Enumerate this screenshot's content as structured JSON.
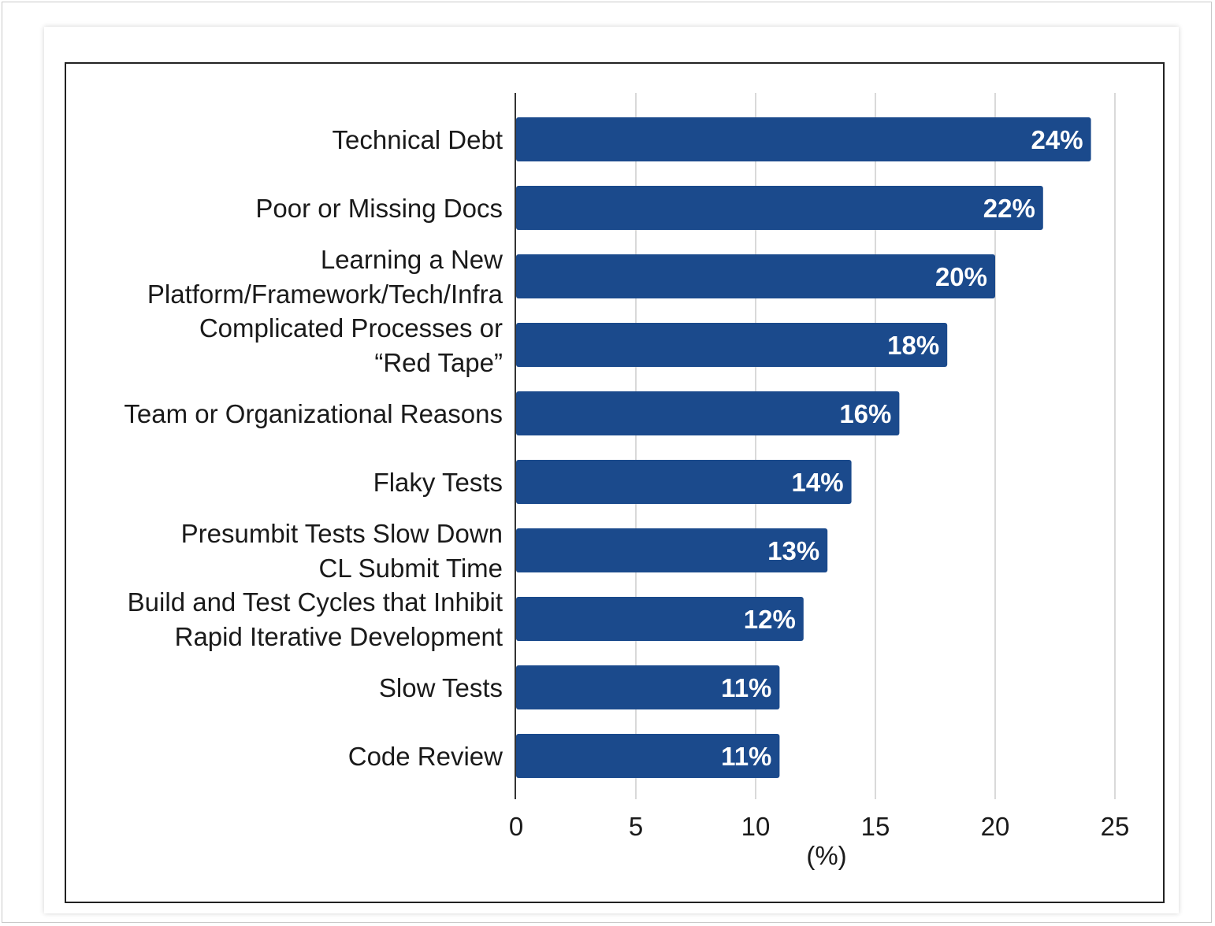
{
  "chart_data": {
    "type": "bar",
    "orientation": "horizontal",
    "categories": [
      [
        "Technical Debt"
      ],
      [
        "Poor or Missing Docs"
      ],
      [
        "Learning a New",
        "Platform/Framework/Tech/Infra"
      ],
      [
        "Complicated Processes or",
        "“Red Tape”"
      ],
      [
        "Team or Organizational Reasons"
      ],
      [
        "Flaky Tests"
      ],
      [
        "Presumbit Tests Slow Down",
        "CL Submit Time"
      ],
      [
        "Build and Test Cycles that Inhibit",
        "Rapid Iterative Development"
      ],
      [
        "Slow Tests"
      ],
      [
        "Code Review"
      ]
    ],
    "values": [
      24,
      22,
      20,
      18,
      16,
      14,
      13,
      12,
      11,
      11
    ],
    "value_labels": [
      "24%",
      "22%",
      "20%",
      "18%",
      "16%",
      "14%",
      "13%",
      "12%",
      "11%",
      "11%"
    ],
    "xlabel": "(%)",
    "xlim": [
      0,
      25
    ],
    "xticks": [
      0,
      5,
      10,
      15,
      20,
      25
    ],
    "grid": "vertical",
    "bar_color": "#1b4a8c"
  }
}
